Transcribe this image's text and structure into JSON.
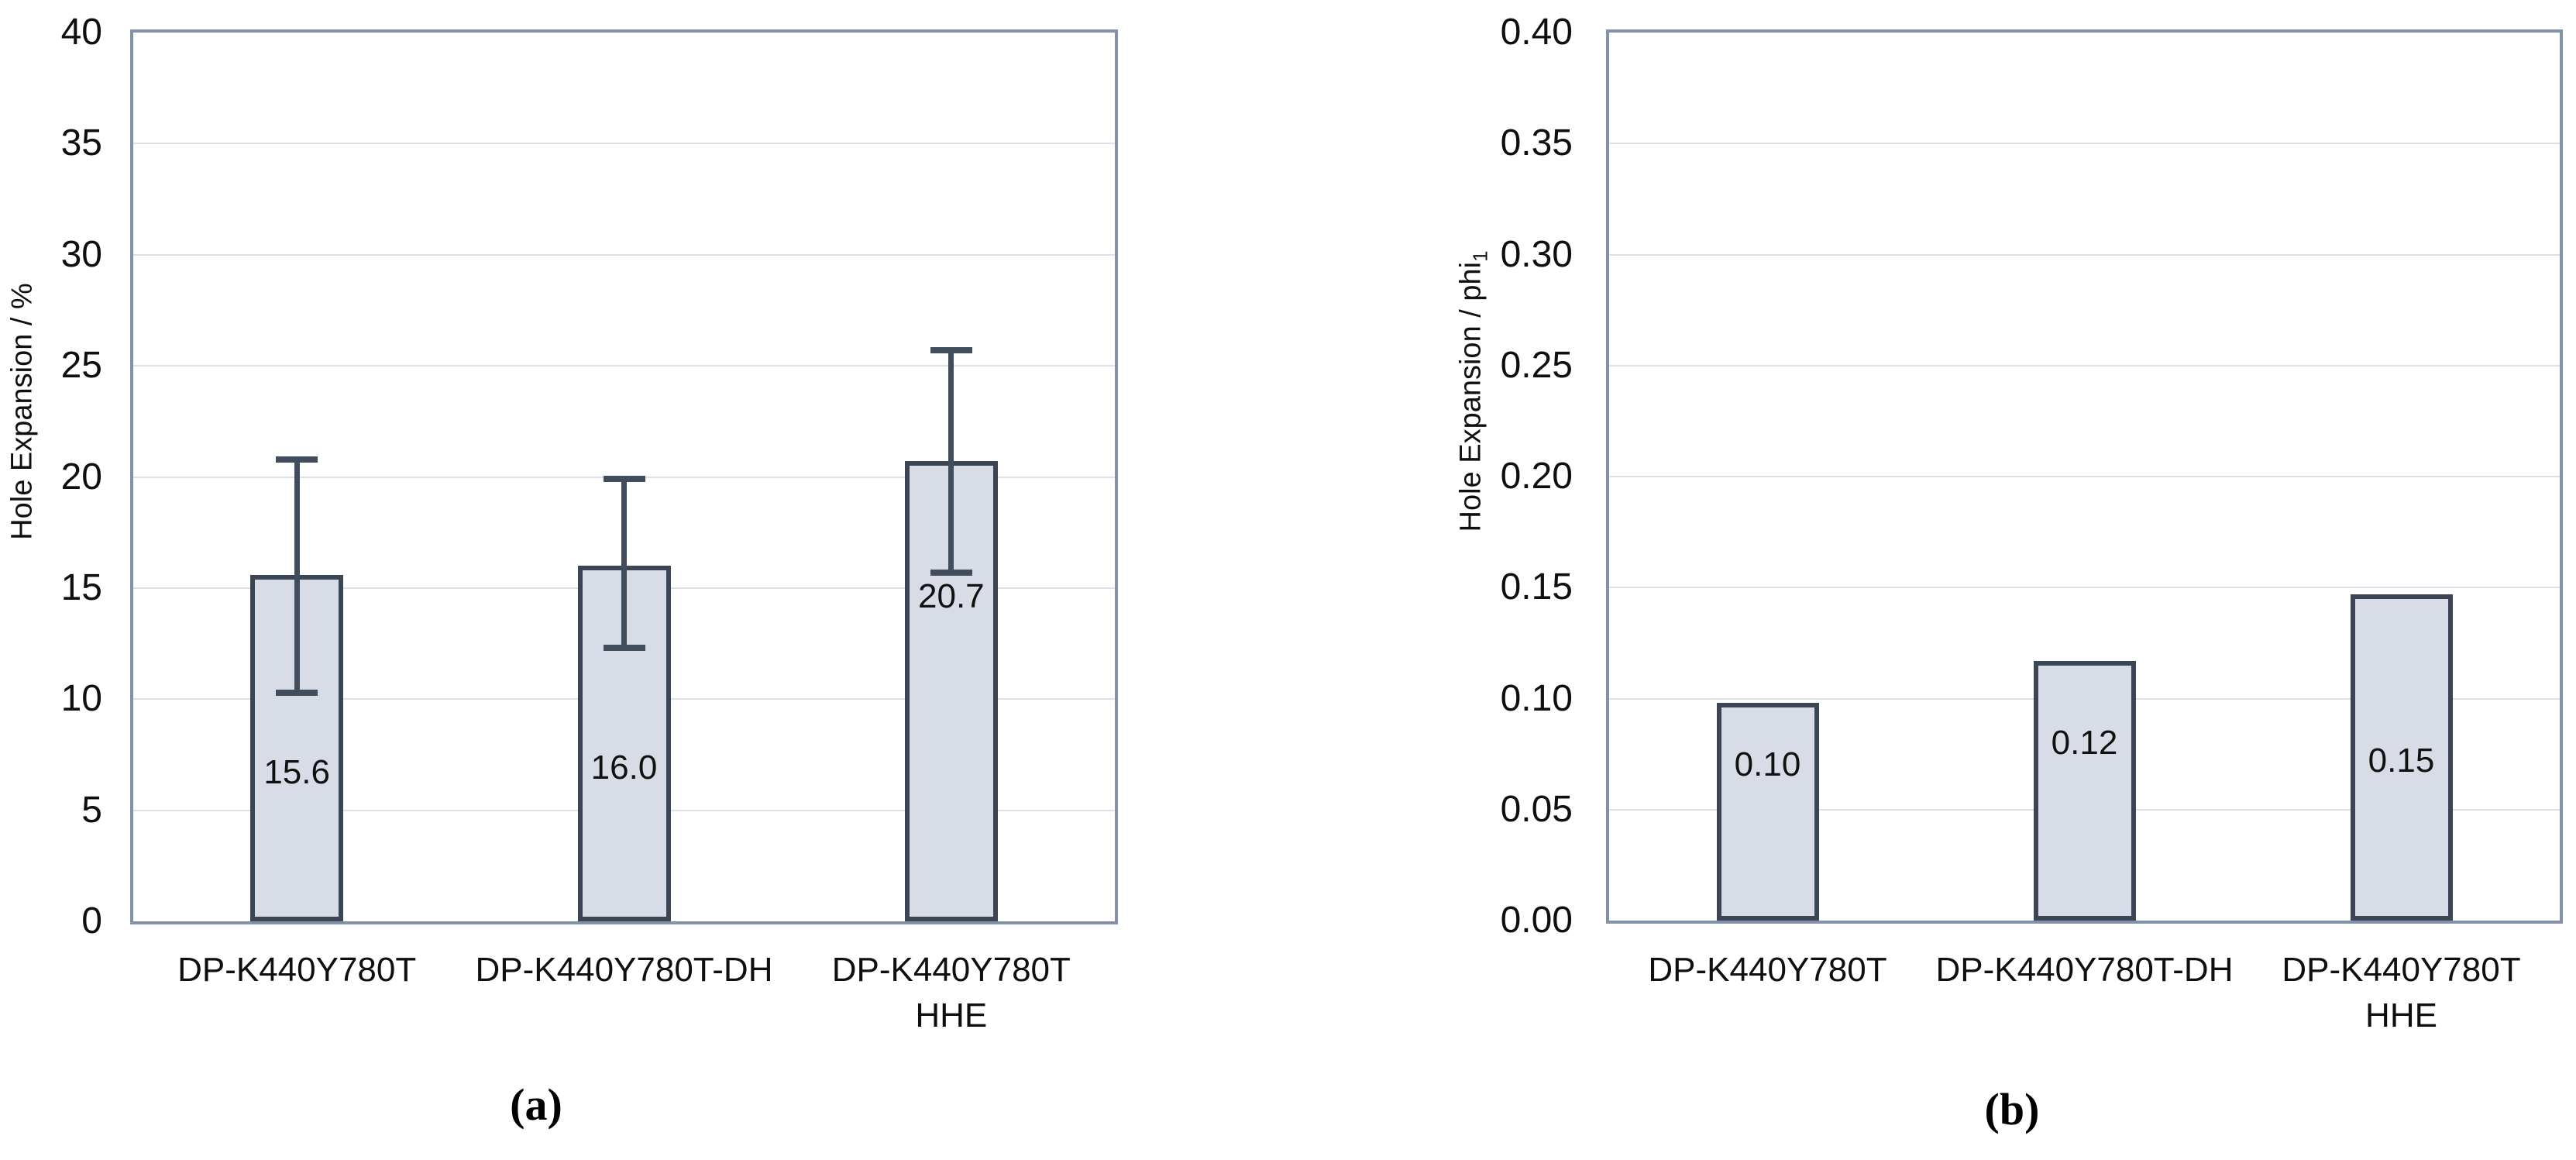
{
  "captions": {
    "a": "(a)",
    "b": "(b)"
  },
  "colors": {
    "bar_fill": "#d8dce6",
    "bar_border": "#3c4554",
    "error_bar": "#414c5d",
    "plot_border": "#8191a8",
    "gridline": "#dde1e7",
    "text": "#0f0f0f",
    "background": "#ffffff"
  },
  "chart_data": [
    {
      "id": "a",
      "type": "bar",
      "title": "",
      "xlabel": "",
      "ylabel": "Hole Expansion / %",
      "ylabel_main": "Hole Expansion / %",
      "ylabel_sub": "",
      "categories": [
        "DP-K440Y780T",
        "DP-K440Y780T-DH",
        "DP-K440Y780T\nHHE"
      ],
      "values": [
        15.6,
        16.0,
        20.7
      ],
      "value_labels": [
        "15.6",
        "16.0",
        "20.7"
      ],
      "error_up": [
        5.2,
        3.9,
        5.0
      ],
      "error_down": [
        5.3,
        3.7,
        5.0
      ],
      "ylim": [
        0,
        40
      ],
      "ytick_step": 5,
      "yticks": [
        {
          "v": 0,
          "label": "0"
        },
        {
          "v": 5,
          "label": "5"
        },
        {
          "v": 10,
          "label": "10"
        },
        {
          "v": 15,
          "label": "15"
        },
        {
          "v": 20,
          "label": "20"
        },
        {
          "v": 25,
          "label": "25"
        },
        {
          "v": 30,
          "label": "30"
        },
        {
          "v": 35,
          "label": "35"
        },
        {
          "v": 40,
          "label": "40"
        }
      ],
      "grid": true,
      "legend_position": "none",
      "label_pos_values": [
        6.7,
        6.9,
        14.6
      ]
    },
    {
      "id": "b",
      "type": "bar",
      "title": "",
      "xlabel": "",
      "ylabel": "Hole Expansion / phi1",
      "ylabel_main": "Hole Expansion / phi",
      "ylabel_sub": "1",
      "categories": [
        "DP-K440Y780T",
        "DP-K440Y780T-DH",
        "DP-K440Y780T\nHHE"
      ],
      "values": [
        0.098,
        0.117,
        0.147
      ],
      "value_labels": [
        "0.10",
        "0.12",
        "0.15"
      ],
      "error_up": null,
      "error_down": null,
      "ylim": [
        0,
        0.4
      ],
      "ytick_step": 0.05,
      "yticks": [
        {
          "v": 0.0,
          "label": "0.00"
        },
        {
          "v": 0.05,
          "label": "0.05"
        },
        {
          "v": 0.1,
          "label": "0.10"
        },
        {
          "v": 0.15,
          "label": "0.15"
        },
        {
          "v": 0.2,
          "label": "0.20"
        },
        {
          "v": 0.25,
          "label": "0.25"
        },
        {
          "v": 0.3,
          "label": "0.30"
        },
        {
          "v": 0.35,
          "label": "0.35"
        },
        {
          "v": 0.4,
          "label": "0.40"
        }
      ],
      "grid": true,
      "legend_position": "none",
      "label_pos_values": [
        0.07,
        0.08,
        0.072
      ]
    }
  ]
}
